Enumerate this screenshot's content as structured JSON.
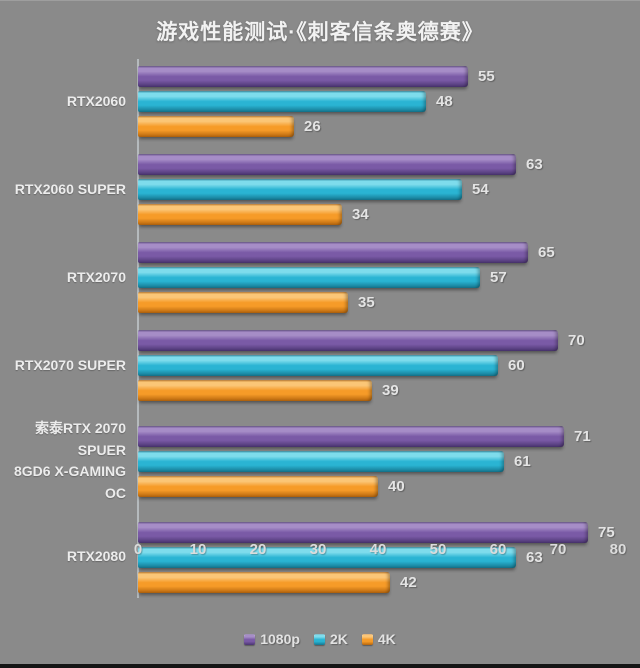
{
  "title": "游戏性能测试·《刺客信条奥德赛》",
  "chart_data": {
    "type": "bar",
    "orientation": "horizontal",
    "title": "游戏性能测试·《刺客信条奥德赛》",
    "categories": [
      "RTX2060",
      "RTX2060 SUPER",
      "RTX2070",
      "RTX2070 SUPER",
      "索泰RTX 2070 SPUER\n8GD6 X-GAMING OC",
      "RTX2080"
    ],
    "series": [
      {
        "name": "1080p",
        "color": "#7a5aa6",
        "color_light": "#a68dc7",
        "color_dark": "#4a3470",
        "values": [
          55,
          63,
          65,
          70,
          71,
          75
        ]
      },
      {
        "name": "2K",
        "color": "#2ab4d3",
        "color_light": "#7edcec",
        "color_dark": "#15768f",
        "values": [
          48,
          54,
          57,
          60,
          61,
          63
        ]
      },
      {
        "name": "4K",
        "color": "#f69b28",
        "color_light": "#fbc677",
        "color_dark": "#b5650d",
        "values": [
          26,
          34,
          35,
          39,
          40,
          42
        ]
      }
    ],
    "xlim": [
      0,
      80
    ],
    "x_ticks": [
      "0",
      "10",
      "20",
      "30",
      "40",
      "50",
      "60",
      "70",
      "80"
    ],
    "grid": false,
    "legend_position": "bottom",
    "background_color": "#8a8a8a",
    "axis_line_color": "#bcc2c6",
    "text_color": "#ececec"
  }
}
